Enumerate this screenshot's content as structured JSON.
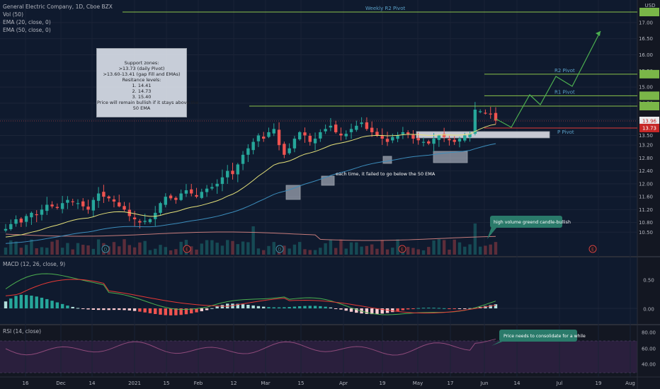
{
  "legend": {
    "title": "General Electric Company, 1D, Cboe BZX",
    "vol": "Vol (50)",
    "ema20": "EMA (20, close, 0)",
    "ema50": "EMA (50, close, 0)",
    "macd": "MACD (12, 26, close, 9)",
    "rsi": "RSI (14, close)"
  },
  "currency": "USD",
  "colors": {
    "background": "#131722",
    "up": "#26a69a",
    "down": "#ef5350",
    "ema20": "#e6e27a",
    "ema50": "#3c8dbc",
    "pivot": "#8bc34a",
    "pivot_p": "#e53935",
    "macd_line": "#4caf50",
    "signal_line": "#e53935",
    "rsi_line": "#8e4a7a",
    "teal_callout": "#2a7a6a"
  },
  "annotations": {
    "support_box": [
      "Support zones:",
      ">13.73 (daily Pivot)",
      ">13.60-13.41 (gap Fill and EMAs)",
      "Resitance levels:",
      "1. 14.41",
      "2. 14.73",
      "3. 15.40",
      "Price will remain bullish if it stays above the",
      "50 EMA"
    ],
    "ema_note": "each time, it failed to go below the 50 EMA",
    "volume_note": "high volume greend candle-bullish",
    "rsi_note": "Price needs to consolidate for a while",
    "weekly_r2": "Weekly R2 Pivot",
    "r2": "R2 Pivot",
    "r1": "R1 Pivot",
    "p": "P Pivot"
  },
  "price_axis": {
    "ticks": [
      "17.00",
      "16.50",
      "16.00",
      "15.50",
      "15.00",
      "14.50",
      "14.00",
      "13.50",
      "13.20",
      "12.80",
      "12.40",
      "12.00",
      "11.60",
      "11.20",
      "10.80",
      "10.50"
    ],
    "last_price": "13.96",
    "pivot_price": "13.73"
  },
  "macd_axis": [
    "0.50",
    "0.00"
  ],
  "rsi_axis": [
    "80.00",
    "60.00",
    "40.00"
  ],
  "time_axis": [
    "16",
    "Dec",
    "14",
    "2021",
    "15",
    "Feb",
    "12",
    "Mar",
    "15",
    "Apr",
    "19",
    "May",
    "17",
    "Jun",
    "14",
    "Jul",
    "19",
    "Aug"
  ],
  "event_markers": [
    "D",
    "E",
    "D",
    "E",
    "E"
  ],
  "chart_data": {
    "type": "candlestick",
    "symbol": "General Electric Company",
    "interval": "1D",
    "period": "Nov 2020 - Jun 2021",
    "approx_closes": [
      10.6,
      10.75,
      10.9,
      10.8,
      11.0,
      11.1,
      11.05,
      11.2,
      11.35,
      11.3,
      11.25,
      11.4,
      11.5,
      11.45,
      11.4,
      11.3,
      11.2,
      11.5,
      11.7,
      11.6,
      11.55,
      11.45,
      11.3,
      11.2,
      11.0,
      10.9,
      10.8,
      10.85,
      10.9,
      11.1,
      11.4,
      11.6,
      11.55,
      11.5,
      11.7,
      11.8,
      11.7,
      11.6,
      11.75,
      11.85,
      11.9,
      12.0,
      12.2,
      12.4,
      12.3,
      12.6,
      12.9,
      13.1,
      13.3,
      13.5,
      13.4,
      13.6,
      13.7,
      13.2,
      12.9,
      13.1,
      13.4,
      13.6,
      13.5,
      13.3,
      13.4,
      13.6,
      13.7,
      13.8,
      13.6,
      13.5,
      13.55,
      13.7,
      13.8,
      13.9,
      13.7,
      13.6,
      13.5,
      13.4,
      13.3,
      13.45,
      13.5,
      13.6,
      13.55,
      13.4,
      13.35,
      13.3,
      13.25,
      13.4,
      13.5,
      13.45,
      13.35,
      13.3,
      13.4,
      13.5,
      13.55,
      14.3,
      14.25,
      14.2,
      14.15,
      13.96
    ],
    "ema20_range": [
      10.7,
      13.6
    ],
    "ema50_range": [
      10.6,
      13.5
    ],
    "pivots": {
      "weekly_r2": 17.7,
      "r2": 15.4,
      "r1": 14.73,
      "resistance1": 14.41,
      "daily_pivot": 13.73
    },
    "macd": {
      "ylim": [
        -0.15,
        0.6
      ]
    },
    "rsi": {
      "ylim": [
        30,
        85
      ],
      "bands": [
        70,
        30
      ]
    }
  }
}
